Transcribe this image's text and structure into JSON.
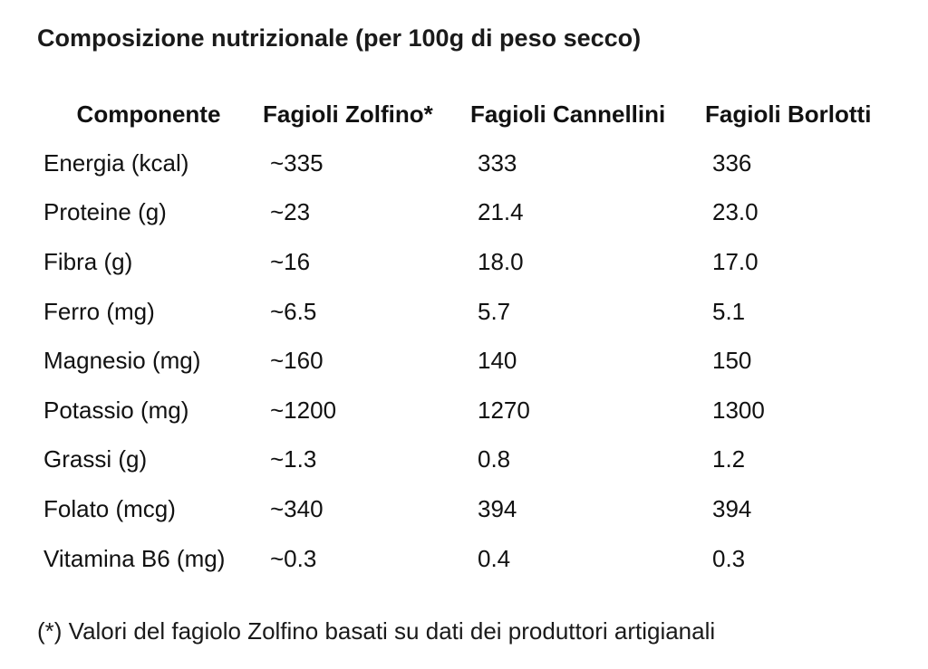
{
  "title": "Composizione nutrizionale (per 100g di peso secco)",
  "table": {
    "headers": [
      "Componente",
      "Fagioli Zolfino*",
      "Fagioli Cannellini",
      "Fagioli Borlotti"
    ],
    "rows": [
      [
        "Energia (kcal)",
        "~335",
        "333",
        "336"
      ],
      [
        "Proteine (g)",
        "~23",
        "21.4",
        "23.0"
      ],
      [
        "Fibra (g)",
        "~16",
        "18.0",
        "17.0"
      ],
      [
        "Ferro (mg)",
        "~6.5",
        "5.7",
        "5.1"
      ],
      [
        "Magnesio (mg)",
        "~160",
        "140",
        "150"
      ],
      [
        "Potassio (mg)",
        "~1200",
        "1270",
        "1300"
      ],
      [
        "Grassi (g)",
        "~1.3",
        "0.8",
        "1.2"
      ],
      [
        "Folato (mcg)",
        "~340",
        "394",
        "394"
      ],
      [
        "Vitamina B6 (mg)",
        "~0.3",
        "0.4",
        "0.3"
      ]
    ]
  },
  "footnote": "(*) Valori del fagiolo Zolfino basati su dati dei produttori artigianali"
}
